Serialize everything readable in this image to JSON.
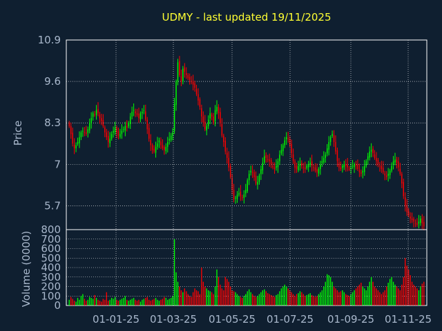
{
  "chart_data": [
    {
      "type": "candlestick",
      "title": "UDMY - last updated 19/11/2025",
      "ylabel": "Price",
      "ylim": [
        4.95,
        10.9
      ],
      "yticks": [
        "10.9",
        "9.6",
        "8.3",
        "7",
        "5.7"
      ],
      "ytick_values": [
        10.9,
        9.6,
        8.3,
        7.0,
        5.7
      ],
      "grid": true,
      "up_color": "#00ff00",
      "down_color": "#ff0000",
      "closes": [
        8.2,
        7.95,
        7.65,
        7.5,
        7.6,
        7.7,
        7.85,
        8.0,
        8.05,
        8.0,
        7.95,
        8.1,
        8.3,
        8.45,
        8.6,
        8.55,
        8.7,
        8.6,
        8.45,
        8.35,
        8.2,
        8.0,
        7.85,
        7.7,
        7.8,
        7.95,
        8.05,
        8.15,
        8.0,
        7.9,
        7.95,
        8.05,
        8.1,
        8.2,
        8.15,
        8.3,
        8.5,
        8.65,
        8.7,
        8.6,
        8.55,
        8.45,
        8.6,
        8.65,
        8.7,
        8.4,
        8.1,
        7.8,
        7.6,
        7.45,
        7.4,
        7.55,
        7.65,
        7.75,
        7.6,
        7.5,
        7.45,
        7.55,
        7.7,
        7.8,
        7.9,
        8.0,
        8.9,
        9.6,
        10.2,
        9.8,
        9.6,
        10.0,
        9.9,
        9.8,
        9.7,
        9.65,
        9.6,
        9.5,
        9.4,
        9.2,
        9.0,
        8.8,
        8.5,
        8.3,
        8.1,
        8.2,
        8.4,
        8.6,
        8.5,
        8.3,
        8.7,
        8.8,
        8.6,
        8.3,
        7.9,
        7.7,
        7.4,
        7.2,
        6.9,
        6.6,
        6.2,
        5.9,
        5.95,
        6.05,
        6.1,
        6.0,
        5.95,
        6.05,
        6.2,
        6.5,
        6.7,
        6.8,
        6.75,
        6.6,
        6.4,
        6.45,
        6.65,
        6.85,
        7.05,
        7.25,
        7.2,
        7.15,
        7.1,
        7.0,
        6.9,
        6.85,
        6.95,
        7.1,
        7.3,
        7.45,
        7.6,
        7.75,
        7.85,
        7.8,
        7.6,
        7.35,
        7.1,
        6.9,
        6.85,
        6.95,
        7.0,
        6.95,
        6.9,
        6.85,
        6.95,
        7.0,
        7.05,
        6.95,
        6.9,
        6.8,
        6.75,
        6.85,
        7.0,
        7.1,
        7.2,
        7.3,
        7.5,
        7.7,
        7.85,
        7.95,
        7.7,
        7.4,
        7.1,
        6.9,
        6.85,
        6.95,
        7.0,
        6.95,
        6.9,
        6.85,
        6.9,
        6.95,
        7.0,
        6.95,
        6.85,
        6.75,
        6.7,
        6.8,
        6.95,
        7.1,
        7.25,
        7.4,
        7.45,
        7.35,
        7.2,
        7.1,
        7.0,
        6.95,
        6.85,
        6.75,
        6.65,
        6.6,
        6.7,
        6.8,
        6.95,
        7.1,
        7.15,
        7.05,
        6.9,
        6.7,
        6.4,
        6.0,
        5.7,
        5.5,
        5.4,
        5.3,
        5.25,
        5.2,
        5.15,
        5.1,
        5.2,
        5.3,
        5.15,
        5.05
      ]
    },
    {
      "type": "bar",
      "ylabel": "Volume (0000)",
      "ylim": [
        0,
        800
      ],
      "yticks": [
        "800",
        "700",
        "600",
        "500",
        "400",
        "300",
        "200",
        "100",
        "0"
      ],
      "ytick_values": [
        800,
        700,
        600,
        500,
        400,
        300,
        200,
        100,
        0
      ],
      "xticks": [
        "01-01-25",
        "01-03-25",
        "01-05-25",
        "01-07-25",
        "01-09-25",
        "01-11-25"
      ],
      "grid": true,
      "values": [
        60,
        90,
        70,
        50,
        40,
        80,
        60,
        100,
        120,
        70,
        50,
        60,
        90,
        80,
        70,
        110,
        80,
        60,
        50,
        40,
        70,
        60,
        140,
        50,
        60,
        80,
        70,
        90,
        60,
        50,
        60,
        70,
        80,
        100,
        60,
        50,
        60,
        70,
        80,
        60,
        50,
        60,
        40,
        60,
        70,
        80,
        90,
        60,
        50,
        60,
        70,
        80,
        60,
        50,
        60,
        70,
        90,
        80,
        60,
        70,
        80,
        100,
        700,
        350,
        250,
        200,
        160,
        140,
        180,
        150,
        120,
        100,
        90,
        140,
        180,
        160,
        150,
        120,
        400,
        250,
        200,
        180,
        160,
        150,
        140,
        120,
        200,
        380,
        300,
        220,
        180,
        160,
        300,
        280,
        250,
        200,
        160,
        150,
        140,
        120,
        100,
        90,
        80,
        100,
        120,
        150,
        170,
        140,
        120,
        100,
        90,
        100,
        120,
        140,
        160,
        170,
        150,
        130,
        120,
        110,
        100,
        90,
        110,
        120,
        150,
        180,
        200,
        220,
        200,
        180,
        160,
        140,
        120,
        100,
        120,
        130,
        150,
        140,
        120,
        100,
        110,
        120,
        130,
        110,
        100,
        90,
        100,
        120,
        140,
        160,
        200,
        250,
        330,
        320,
        300,
        250,
        200,
        180,
        160,
        140,
        150,
        160,
        140,
        120,
        110,
        100,
        120,
        140,
        160,
        180,
        200,
        220,
        240,
        200,
        180,
        160,
        200,
        250,
        300,
        250,
        200,
        180,
        160,
        140,
        120,
        140,
        160,
        200,
        240,
        280,
        300,
        250,
        220,
        200,
        180,
        160,
        220,
        300,
        500,
        420,
        380,
        320,
        250,
        220,
        200,
        180,
        160,
        200,
        230,
        250
      ]
    }
  ]
}
